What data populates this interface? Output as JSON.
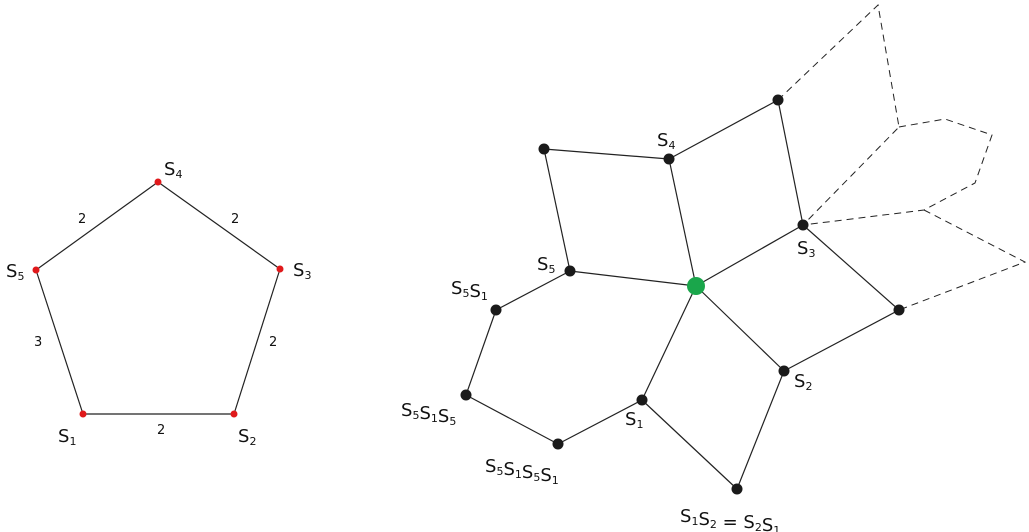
{
  "colors": {
    "edge": "#222222",
    "coxeter_vertex": "#e0191b",
    "graph_vertex": "#1a1a1a",
    "identity_vertex": "#1aa64b"
  },
  "coxeter_diagram": {
    "vertices": [
      {
        "id": "s1",
        "label": "S",
        "sub": "1"
      },
      {
        "id": "s2",
        "label": "S",
        "sub": "2"
      },
      {
        "id": "s3",
        "label": "S",
        "sub": "3"
      },
      {
        "id": "s4",
        "label": "S",
        "sub": "4"
      },
      {
        "id": "s5",
        "label": "S",
        "sub": "5"
      }
    ],
    "edges": [
      {
        "from": "s1",
        "to": "s2",
        "weight": "2"
      },
      {
        "from": "s2",
        "to": "s3",
        "weight": "2"
      },
      {
        "from": "s3",
        "to": "s4",
        "weight": "2"
      },
      {
        "from": "s4",
        "to": "s5",
        "weight": "2"
      },
      {
        "from": "s5",
        "to": "s1",
        "weight": "3"
      }
    ]
  },
  "cayley_graph": {
    "labels": {
      "s4": [
        {
          "t": "S",
          "s": "4"
        }
      ],
      "s3": [
        {
          "t": "S",
          "s": "3"
        }
      ],
      "s5": [
        {
          "t": "S",
          "s": "5"
        }
      ],
      "s2": [
        {
          "t": "S",
          "s": "2"
        }
      ],
      "s1": [
        {
          "t": "S",
          "s": "1"
        }
      ],
      "s5s1": [
        {
          "t": "S",
          "s": "5"
        },
        {
          "t": "S",
          "s": "1"
        }
      ],
      "s5s1s5": [
        {
          "t": "S",
          "s": "5"
        },
        {
          "t": "S",
          "s": "1"
        },
        {
          "t": "S",
          "s": "5"
        }
      ],
      "s5s1s5s1": [
        {
          "t": "S",
          "s": "5"
        },
        {
          "t": "S",
          "s": "1"
        },
        {
          "t": "S",
          "s": "5"
        },
        {
          "t": "S",
          "s": "1"
        }
      ],
      "s1s2": [
        {
          "t": "S",
          "s": "1"
        },
        {
          "t": "S",
          "s": "2"
        },
        {
          "t": " = "
        },
        {
          "t": "S",
          "s": "2"
        },
        {
          "t": "S",
          "s": "1"
        }
      ]
    }
  }
}
